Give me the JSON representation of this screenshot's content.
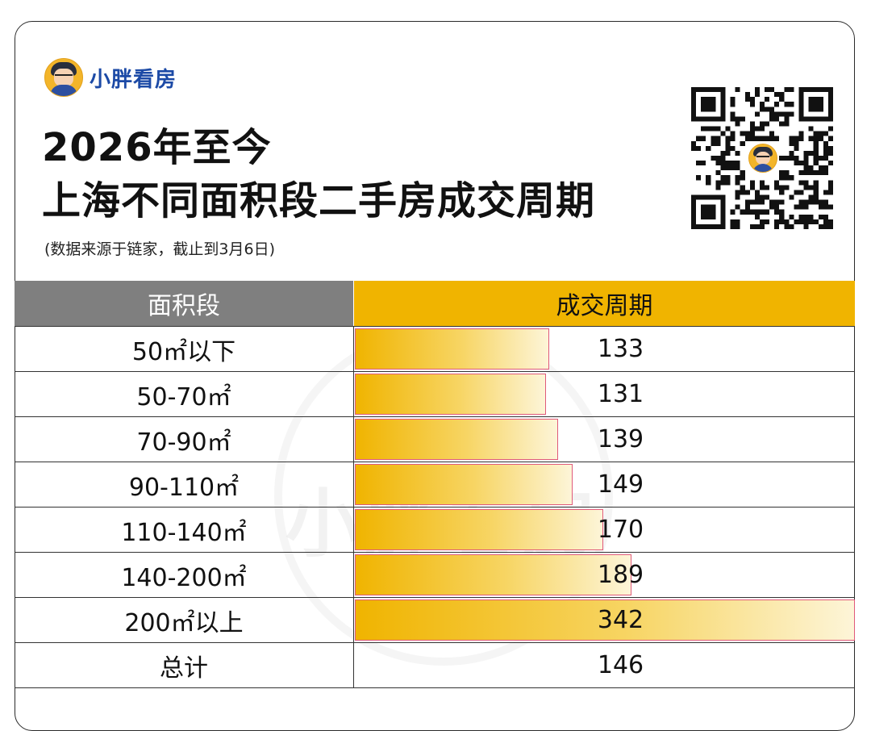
{
  "brand": {
    "name": "小胖看房"
  },
  "title": {
    "line1": "2026年至今",
    "line2": "上海不同面积段二手房成交周期"
  },
  "source": "(数据来源于链家，截止到3月6日)",
  "colors": {
    "header_left": "#7f7f7f",
    "header_right": "#f0b400",
    "bar": "#f0b400",
    "brand": "#1c4aa6"
  },
  "chart_data": {
    "type": "bar",
    "columns": [
      "面积段",
      "成交周期"
    ],
    "categories": [
      "50㎡以下",
      "50-70㎡",
      "70-90㎡",
      "90-110㎡",
      "110-140㎡",
      "140-200㎡",
      "200㎡以上"
    ],
    "values": [
      133,
      131,
      139,
      149,
      170,
      189,
      342
    ],
    "total": {
      "label": "总计",
      "value": 146
    },
    "xmax": 342
  },
  "watermark": "小胖看房"
}
